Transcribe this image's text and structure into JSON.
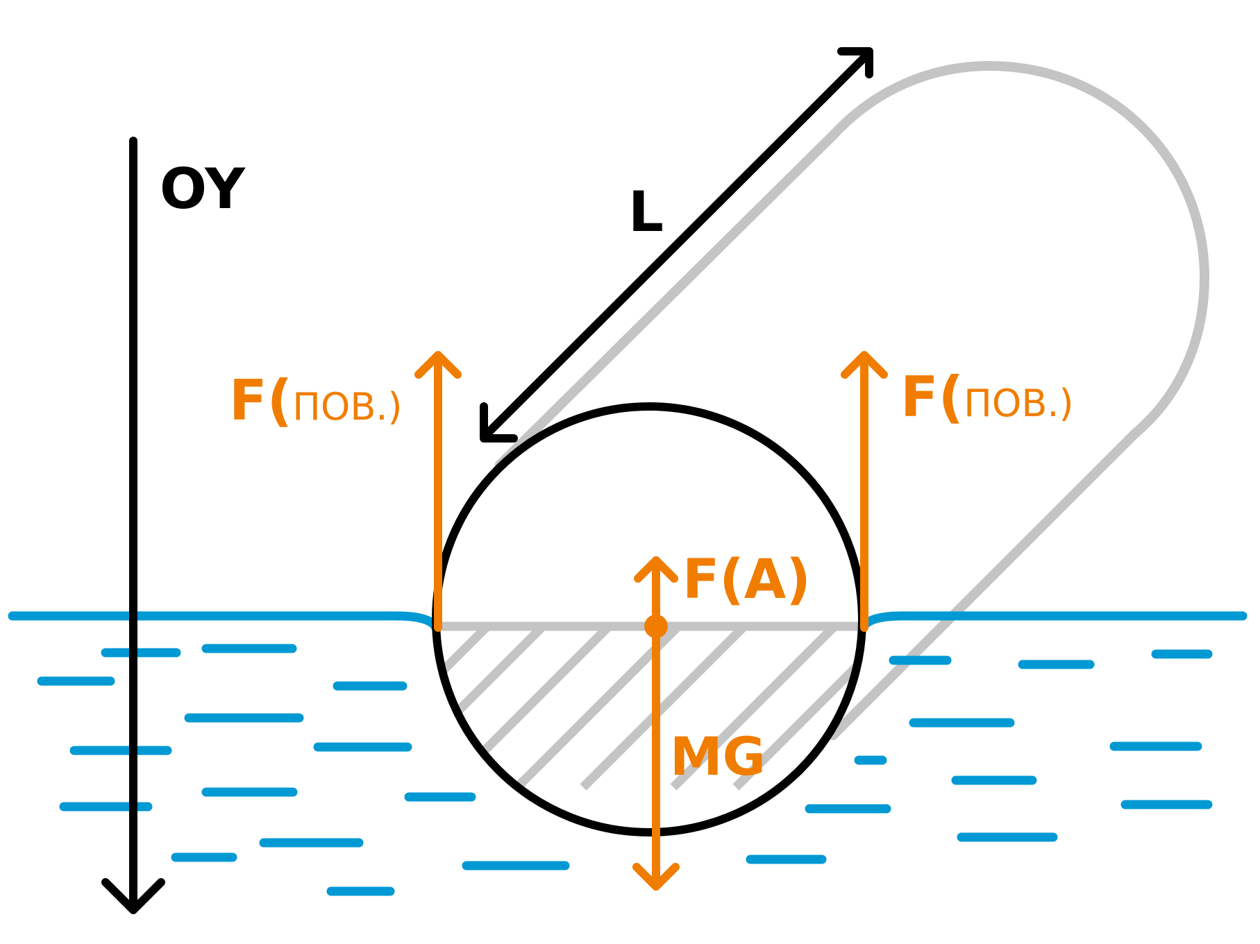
{
  "labels": {
    "axis": "OY",
    "length": "L",
    "surface_force_left": {
      "main": "F(",
      "sub": "ПОВ.)"
    },
    "surface_force_right": {
      "main": "F(",
      "sub": "ПОВ.)"
    },
    "archimedes_force": "F(A)",
    "gravity_force": "MG"
  },
  "colors": {
    "water": "#0099d4",
    "force": "#f07d00",
    "outline": "#000000",
    "ring": "#c4c4c4"
  }
}
